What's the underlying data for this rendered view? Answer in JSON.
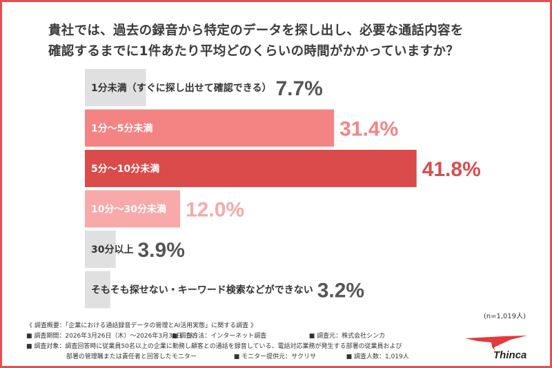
{
  "title_line1": "貴社では、過去の録音から特定のデータを探し出し、必要な通話内容を",
  "title_line2": "確認するまでに1件あたり平均どのくらいの時間がかかっていますか？",
  "sample_note": "(n=1,019人)",
  "colors": {
    "frame": "#e05050",
    "gray": "#e0e0e0",
    "pink_light": "#f8a9a9",
    "pink": "#f48484",
    "red": "#db4b4b",
    "label_dark": "#333333",
    "value_gray": "#555555"
  },
  "chart_data": {
    "type": "bar",
    "orientation": "horizontal",
    "categories": [
      "1分未満（すぐに探し出せて確認できる）",
      "1分～5分未満",
      "5分～10分未満",
      "10分～30分未満",
      "30分以上",
      "そもそも探せない・キーワード検索などができない"
    ],
    "values": [
      7.7,
      31.4,
      41.8,
      12.0,
      3.9,
      3.2
    ],
    "value_labels": [
      "7.7%",
      "31.4%",
      "41.8%",
      "12.0%",
      "3.9%",
      "3.2%"
    ],
    "bar_colors": [
      "#e0e0e0",
      "#f48484",
      "#db4b4b",
      "#f8a9a9",
      "#e0e0e0",
      "#e0e0e0"
    ],
    "label_colors": [
      "#333333",
      "#ffffff",
      "#ffffff",
      "#ffffff",
      "#333333",
      "#333333"
    ],
    "value_colors": [
      "#555555",
      "#f48484",
      "#db4b4b",
      "#f8a9a9",
      "#555555",
      "#555555"
    ],
    "xlim": [
      0,
      45
    ],
    "grid": false,
    "legend": "none"
  },
  "notes": {
    "overview": "《 調査概要：「企業における通話録音データの管理とAI活用実態」に関する調査 》",
    "period": "■ 調査期間：2026年3月26日（木）～2026年3月31日（火）",
    "method": "■ 調査方法：インターネット調査",
    "source": "■ 調査元：株式会社シンカ",
    "target_line1": "■ 調査対象：調査回答時に従業員50名以上の企業に勤務し顧客との通話を録音している、電話対応業務が発生する部署の従業員および",
    "target_line2": "部署の管理職または責任者と回答したモニター",
    "provider": "■ モニター提供元：サクリサ",
    "count": "■ 調査人数：1,019人"
  },
  "logo": {
    "text": "Thinca"
  }
}
